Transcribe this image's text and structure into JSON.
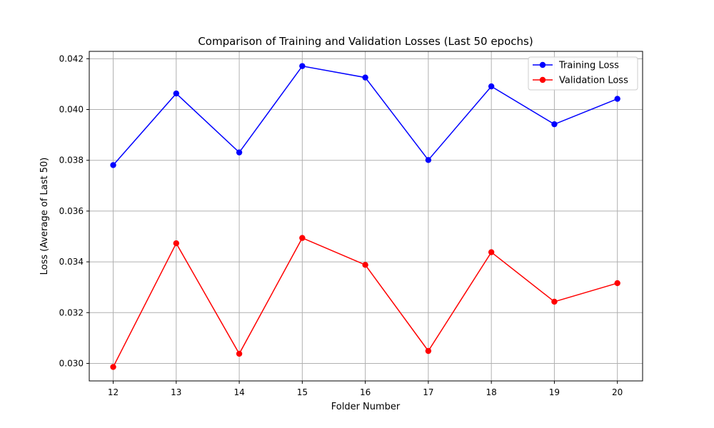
{
  "chart_data": {
    "type": "line",
    "title": "Comparison of Training and Validation Losses (Last 50 epochs)",
    "xlabel": "Folder Number",
    "ylabel": "Loss (Average of Last 50)",
    "x": [
      12,
      13,
      14,
      15,
      16,
      17,
      18,
      19,
      20
    ],
    "x_ticks": [
      "12",
      "13",
      "14",
      "15",
      "16",
      "17",
      "18",
      "19",
      "20"
    ],
    "y_ticks": [
      "0.030",
      "0.032",
      "0.034",
      "0.036",
      "0.038",
      "0.040",
      "0.042"
    ],
    "y_tick_values": [
      0.03,
      0.032,
      0.034,
      0.036,
      0.038,
      0.04,
      0.042
    ],
    "xlim": [
      11.62,
      20.4
    ],
    "ylim": [
      0.02931,
      0.04229
    ],
    "grid": true,
    "legend_position": "top-right",
    "series": [
      {
        "name": "Training Loss",
        "color": "#0000ff",
        "marker": "circle",
        "values": [
          0.03781,
          0.04063,
          0.03831,
          0.04171,
          0.04126,
          0.03801,
          0.04091,
          0.03942,
          0.04042
        ]
      },
      {
        "name": "Validation Loss",
        "color": "#ff0000",
        "marker": "circle",
        "values": [
          0.02986,
          0.03473,
          0.03038,
          0.03494,
          0.03388,
          0.03049,
          0.03438,
          0.03243,
          0.03316
        ]
      }
    ]
  }
}
